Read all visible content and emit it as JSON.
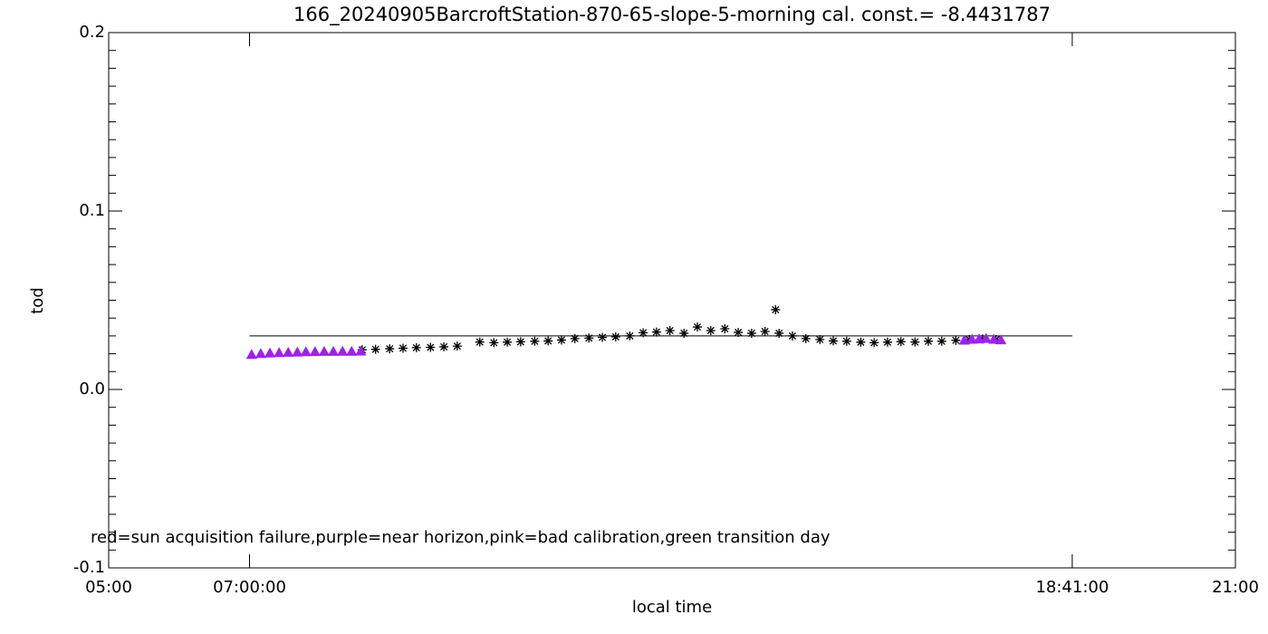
{
  "chart_data": {
    "type": "scatter",
    "title": "166_20240905BarcroftStation-870-65-slope-5-morning cal. const.= -8.4431787",
    "xlabel": "local time",
    "ylabel": "tod",
    "annotation": "red=sun acquisition failure,purple=near horizon,pink=bad calibration,green transition day",
    "xlim": [
      5,
      21
    ],
    "xticks": [
      {
        "value": 5,
        "label": "05:00"
      },
      {
        "value": 7,
        "label": "07:00:00"
      },
      {
        "value": 18.6833,
        "label": "18:41:00"
      },
      {
        "value": 21,
        "label": "21:00"
      }
    ],
    "ylim": [
      -0.1,
      0.2
    ],
    "yticks": [
      {
        "value": -0.1,
        "label": "-0.1"
      },
      {
        "value": 0,
        "label": "0.0"
      },
      0.1,
      0.2
    ],
    "yminor": 10,
    "hline": {
      "y": 0.03,
      "x": [
        7,
        18.6833
      ],
      "color": "#000000"
    },
    "series": [
      {
        "color": "#000000",
        "marker": "asterisk",
        "x": [
          8.6,
          8.79,
          8.99,
          9.18,
          9.37,
          9.57,
          9.76,
          9.95,
          10.27,
          10.47,
          10.66,
          10.85,
          11.05,
          11.24,
          11.43,
          11.62,
          11.82,
          12.01,
          12.2,
          12.4,
          12.59,
          12.78,
          12.97,
          13.17,
          13.36,
          13.55,
          13.75,
          13.94,
          14.13,
          14.32,
          14.47,
          14.52,
          14.71,
          14.9,
          15.1,
          15.29,
          15.48,
          15.68,
          15.87,
          16.06,
          16.25,
          16.45,
          16.64,
          16.83,
          17.03,
          17.22,
          17.41,
          17.6
        ],
        "values": [
          0.0222,
          0.0225,
          0.0228,
          0.0231,
          0.0234,
          0.0236,
          0.0239,
          0.0243,
          0.0266,
          0.0262,
          0.0265,
          0.0267,
          0.027,
          0.0272,
          0.0277,
          0.0285,
          0.0288,
          0.0292,
          0.0295,
          0.03,
          0.0318,
          0.0322,
          0.033,
          0.0315,
          0.035,
          0.033,
          0.034,
          0.032,
          0.0315,
          0.0325,
          0.0447,
          0.0315,
          0.03,
          0.0285,
          0.028,
          0.0272,
          0.027,
          0.0265,
          0.0262,
          0.0265,
          0.0268,
          0.0266,
          0.027,
          0.027,
          0.0275,
          0.028,
          0.0283,
          0.028
        ]
      },
      {
        "color": "#a020f0",
        "marker": "triangle",
        "x": [
          7.03,
          7.16,
          7.29,
          7.42,
          7.55,
          7.68,
          7.8,
          7.93,
          8.06,
          8.19,
          8.32,
          8.45,
          8.58,
          17.15,
          17.26,
          17.36,
          17.46,
          17.57,
          17.67
        ],
        "values": [
          0.0195,
          0.02,
          0.0203,
          0.0205,
          0.0207,
          0.0208,
          0.021,
          0.0211,
          0.0212,
          0.0212,
          0.0213,
          0.0213,
          0.0214,
          0.0275,
          0.028,
          0.0282,
          0.0285,
          0.028,
          0.0277
        ]
      }
    ]
  }
}
